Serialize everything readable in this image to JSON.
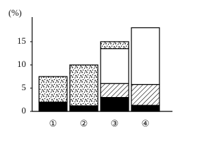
{
  "chart_data": {
    "type": "bar",
    "stacked": true,
    "ylabel": "(%)",
    "categories": [
      "①",
      "②",
      "③",
      "④"
    ],
    "series": [
      {
        "color": "#000000",
        "pattern": "solid",
        "values": [
          2,
          1.2,
          3,
          1.3
        ]
      },
      {
        "color": "#000000",
        "pattern": "hatch",
        "values": [
          0,
          0,
          3,
          4.5
        ]
      },
      {
        "color": "#ffffff",
        "pattern": "none",
        "values": [
          0,
          0,
          7.5,
          12.2
        ]
      },
      {
        "color": "#000000",
        "pattern": "dots",
        "values": [
          5.5,
          8.8,
          1.5,
          0
        ]
      }
    ],
    "ylim": [
      0,
      20
    ],
    "yticks": [
      0,
      5,
      10,
      15
    ],
    "grid": false
  }
}
